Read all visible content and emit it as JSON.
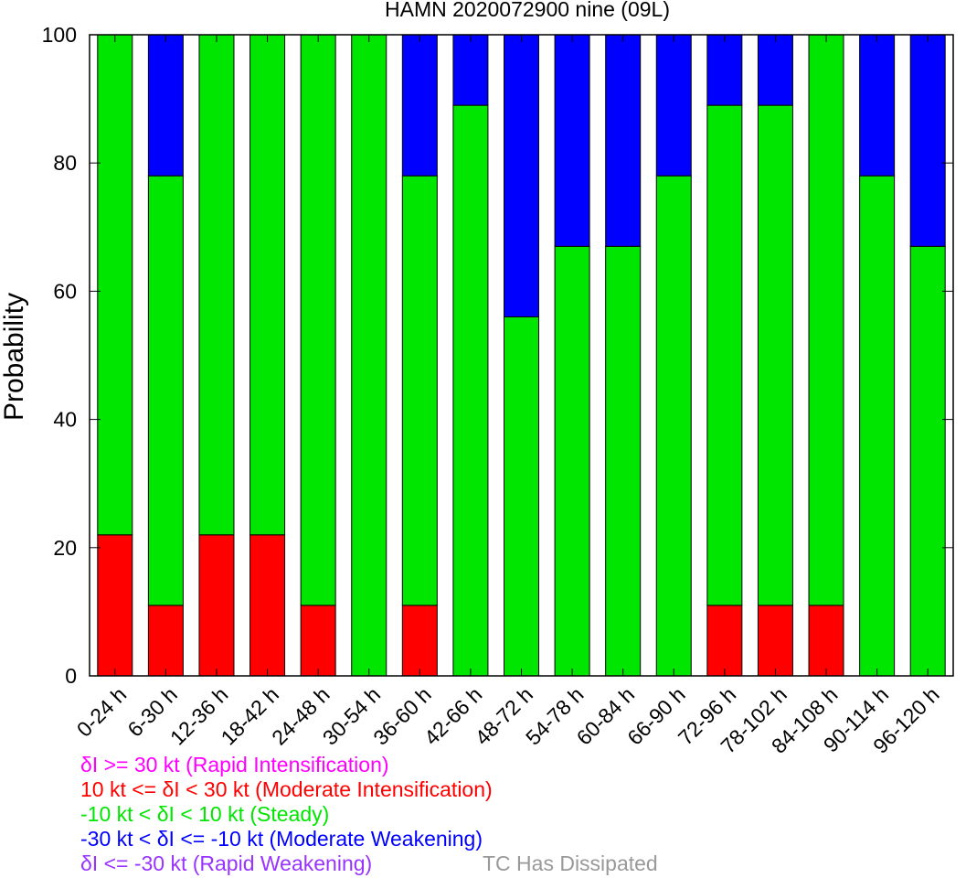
{
  "chart_data": {
    "type": "bar",
    "stacked": true,
    "title": "HAMN 2020072900 nine (09L)",
    "ylabel": "Probability",
    "xlabel": "",
    "ylim": [
      0,
      100
    ],
    "yticks": [
      0,
      20,
      40,
      60,
      80,
      100
    ],
    "grid": false,
    "categories": [
      "0-24 h",
      "6-30 h",
      "12-36 h",
      "18-42 h",
      "24-48 h",
      "30-54 h",
      "36-60 h",
      "42-66 h",
      "48-72 h",
      "54-78 h",
      "60-84 h",
      "66-90 h",
      "72-96 h",
      "78-102 h",
      "84-108 h",
      "90-114 h",
      "96-120 h"
    ],
    "series": [
      {
        "key": "moderate_intensification",
        "color": "#ff0000",
        "values": [
          22,
          11,
          22,
          22,
          11,
          0,
          11,
          0,
          0,
          0,
          0,
          0,
          11,
          11,
          11,
          0,
          0
        ]
      },
      {
        "key": "steady",
        "color": "#00e600",
        "values": [
          78,
          67,
          78,
          78,
          89,
          100,
          67,
          89,
          56,
          67,
          67,
          78,
          78,
          78,
          89,
          78,
          67
        ]
      },
      {
        "key": "moderate_weakening",
        "color": "#0000ff",
        "values": [
          0,
          22,
          0,
          0,
          0,
          0,
          22,
          11,
          44,
          33,
          33,
          22,
          11,
          11,
          0,
          22,
          33
        ]
      }
    ]
  },
  "legend": {
    "rapid_intensification": {
      "text": "δI >= 30 kt (Rapid Intensification)",
      "color": "#ff00ff"
    },
    "moderate_intensification": {
      "text": "10 kt <= δI < 30 kt (Moderate Intensification)",
      "color": "#ff0000"
    },
    "steady": {
      "text": "-10 kt < δI < 10 kt (Steady)",
      "color": "#00e600"
    },
    "moderate_weakening": {
      "text": "-30 kt < δI <= -10 kt (Moderate Weakening)",
      "color": "#0000ff"
    },
    "rapid_weakening": {
      "text": "δI <= -30 kt (Rapid Weakening)",
      "color": "#9933ff"
    },
    "dissipated": {
      "text": "TC Has Dissipated",
      "color": "#999999"
    }
  }
}
